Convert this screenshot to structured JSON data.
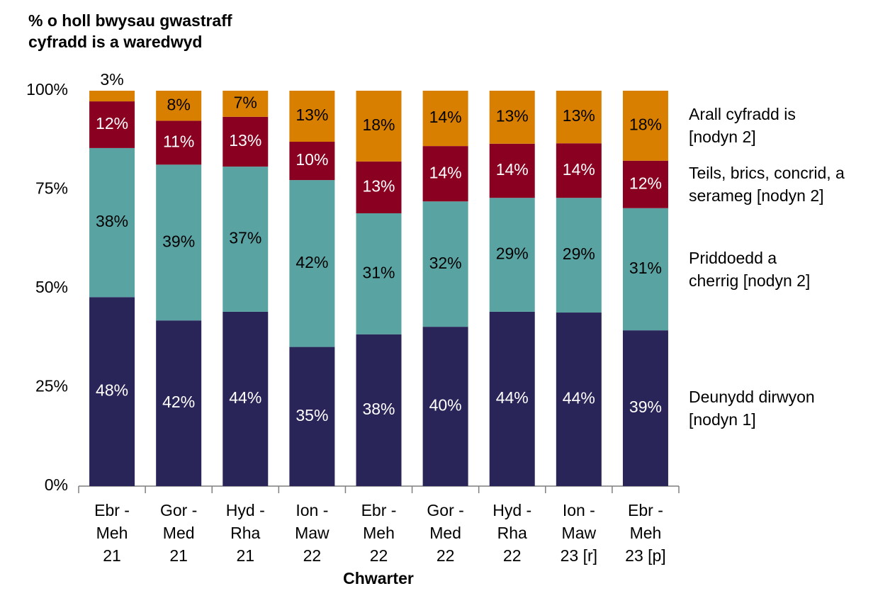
{
  "chart_data": {
    "type": "stacked_bar",
    "title": "% o holl bwysau gwastraff\ncyfradd is a waredwyd",
    "x_label": "Chwarter",
    "categories": [
      "Ebr -\nMeh\n21",
      "Gor -\nMed\n21",
      "Hyd -\nRha\n21",
      "Ion -\nMaw\n22",
      "Ebr -\nMeh\n22",
      "Gor -\nMed\n22",
      "Hyd -\nRha\n22",
      "Ion -\nMaw\n23 [r]",
      "Ebr -\nMeh\n23 [p]"
    ],
    "series": [
      {
        "name": "Deunydd dirwyon\n[nodyn 1]",
        "color": "#2a2559",
        "label_color": "#ffffff",
        "values": [
          47.8,
          41.9,
          44.1,
          35.2,
          38.4,
          40.3,
          44.1,
          43.9,
          39.4
        ],
        "value_labels": [
          "48%",
          "42%",
          "44%",
          "35%",
          "38%",
          "40%",
          "44%",
          "44%",
          "39%"
        ]
      },
      {
        "name": "Priddoedd a\ncherrig [nodyn 2]",
        "color": "#5aa3a3",
        "label_color": "#000000",
        "values": [
          37.7,
          39.4,
          36.7,
          42.2,
          30.6,
          31.7,
          28.8,
          29.0,
          30.9
        ],
        "value_labels": [
          "38%",
          "39%",
          "37%",
          "42%",
          "31%",
          "32%",
          "29%",
          "29%",
          "31%"
        ]
      },
      {
        "name": "Teils, brics, concrid, a\nserameg [nodyn 2]",
        "color": "#8a0020",
        "label_color": "#ffffff",
        "values": [
          11.8,
          11.1,
          12.6,
          9.7,
          13.1,
          14.0,
          13.7,
          13.8,
          12.0
        ],
        "value_labels": [
          "12%",
          "11%",
          "13%",
          "10%",
          "13%",
          "14%",
          "14%",
          "14%",
          "12%"
        ]
      },
      {
        "name": "Arall cyfradd is\n[nodyn 2]",
        "color": "#d97f00",
        "label_color": "#000000",
        "values": [
          2.7,
          7.6,
          6.6,
          12.9,
          17.9,
          14.0,
          13.4,
          13.3,
          17.7
        ],
        "value_labels": [
          "3%",
          "8%",
          "7%",
          "13%",
          "18%",
          "14%",
          "13%",
          "13%",
          "18%"
        ]
      }
    ],
    "ylim": [
      0,
      100
    ],
    "yticks": [
      {
        "value": 0,
        "label": "0%"
      },
      {
        "value": 25,
        "label": "25%"
      },
      {
        "value": 50,
        "label": "50%"
      },
      {
        "value": 75,
        "label": "75%"
      },
      {
        "value": 100,
        "label": "100%"
      }
    ]
  }
}
